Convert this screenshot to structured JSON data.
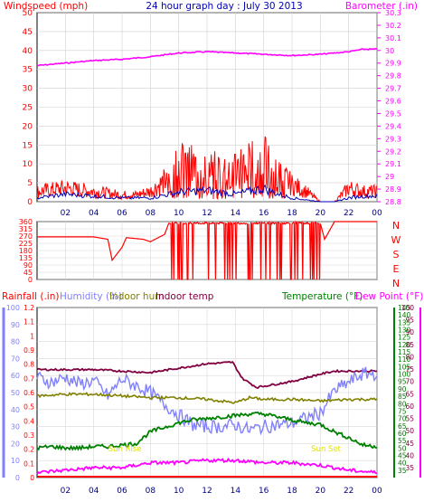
{
  "chart_data": [
    {
      "type": "line",
      "title": "24 hour graph day : July 30 2013",
      "left_axis_label": "Windspeed (mph)",
      "right_axis_label": "Barometer (.in)",
      "x_ticks": [
        "02",
        "04",
        "06",
        "08",
        "10",
        "12",
        "14",
        "16",
        "18",
        "20",
        "22",
        "00"
      ],
      "x_range_hours": [
        0,
        24
      ],
      "left_ylim": [
        0,
        50
      ],
      "left_ticks": [
        0,
        5,
        10,
        15,
        20,
        25,
        30,
        35,
        40,
        45,
        50
      ],
      "right_ylim": [
        28.8,
        30.3
      ],
      "right_ticks": [
        "28.8",
        "28.9",
        "29",
        "29.1",
        "29.2",
        "29.3",
        "29.4",
        "29.5",
        "29.6",
        "29.7",
        "29.8",
        "29.9",
        "30",
        "30.1",
        "30.2",
        "30.3"
      ],
      "series": [
        {
          "color": "#ff00ff",
          "axis": "right",
          "x": [
            0,
            2,
            4,
            6,
            8,
            10,
            12,
            14,
            16,
            18,
            20,
            22,
            23,
            24
          ],
          "y": [
            29.88,
            29.9,
            29.92,
            29.93,
            29.95,
            29.98,
            29.99,
            29.98,
            29.97,
            29.96,
            29.97,
            29.99,
            30.01,
            30.01
          ]
        },
        {
          "color": "#ff0000",
          "axis": "left",
          "x": [
            0,
            2,
            4,
            6,
            7,
            8,
            9,
            10,
            11,
            12,
            13,
            14,
            15,
            16,
            17,
            18,
            19,
            20,
            21,
            22,
            23,
            24
          ],
          "y": [
            3,
            4,
            3,
            2,
            2,
            3,
            6,
            11,
            10,
            9,
            9,
            10,
            11,
            12,
            8,
            5,
            3,
            0,
            0,
            4,
            3,
            3
          ]
        },
        {
          "color": "#0000b4",
          "axis": "left",
          "x": [
            0,
            2,
            4,
            6,
            8,
            10,
            12,
            14,
            16,
            17,
            18,
            19,
            20,
            21,
            22,
            23,
            24
          ],
          "y": [
            1,
            2,
            1.5,
            1,
            1,
            2.5,
            3,
            2,
            3.5,
            2,
            1,
            0.5,
            0,
            0,
            1,
            1.5,
            1.5
          ]
        }
      ]
    },
    {
      "type": "line",
      "title": "",
      "left_ylim": [
        0,
        360
      ],
      "left_ticks": [
        0,
        45,
        90,
        135,
        180,
        225,
        270,
        315,
        360
      ],
      "right_labels": [
        "N",
        "W",
        "S",
        "E",
        "N"
      ],
      "series": [
        {
          "color": "#ff0000",
          "x": [
            0,
            4,
            5,
            5.3,
            6,
            6.3,
            7.5,
            8,
            9,
            9.3,
            20,
            20.3,
            21,
            24
          ],
          "y": [
            265,
            265,
            250,
            120,
            200,
            260,
            250,
            235,
            280,
            350,
            350,
            250,
            360,
            360
          ]
        }
      ]
    },
    {
      "type": "line",
      "legend": [
        {
          "label": "Rainfall (.in)",
          "color": "#ff0000"
        },
        {
          "label": "Humidity (%)",
          "color": "#8080ff"
        },
        {
          "label": "Indoor hum",
          "color": "#808000"
        },
        {
          "label": "Indoor temp",
          "color": "#800040"
        },
        {
          "label": "Temperature (°F)",
          "color": "#008000"
        },
        {
          "label": "Dew Point (°F)",
          "color": "#ff00ff"
        }
      ],
      "axis_rainfall": {
        "range": [
          0,
          1.2
        ],
        "ticks": [
          "0",
          "0.1",
          "0.2",
          "0.3",
          "0.4",
          "0.5",
          "0.6",
          "0.7",
          "0.8",
          "0.9",
          "1",
          "1.1",
          "1.2"
        ]
      },
      "axis_humidity": {
        "range": [
          0,
          100
        ],
        "ticks": [
          0,
          10,
          20,
          30,
          40,
          50,
          60,
          70,
          80,
          90,
          100
        ]
      },
      "axis_temperature": {
        "range": [
          30,
          145
        ],
        "ticks": [
          35,
          40,
          45,
          50,
          55,
          60,
          65,
          70,
          75,
          80,
          85,
          90,
          95,
          100,
          105,
          110,
          115,
          120,
          125,
          130,
          135,
          140,
          145
        ]
      },
      "axis_dewpoint": {
        "range": [
          31,
          100
        ],
        "ticks": [
          35,
          40,
          45,
          50,
          55,
          60,
          65,
          70,
          75,
          80,
          85,
          90,
          95,
          100
        ]
      },
      "annotations": [
        {
          "text": "Sun Rise",
          "x": 6.2
        },
        {
          "text": "Sun Set",
          "x": 20.4
        }
      ],
      "series": [
        {
          "name": "Indoor temp",
          "axis": "temperature",
          "color": "#800040",
          "x": [
            0,
            4,
            8,
            10,
            12,
            13.8,
            14.5,
            15.5,
            18,
            20,
            21,
            24
          ],
          "y": [
            103,
            103,
            101,
            104,
            107,
            108,
            97,
            91,
            95,
            100,
            102,
            102
          ]
        },
        {
          "name": "Humidity (%)",
          "axis": "humidity",
          "color": "#8080ff",
          "x": [
            0,
            1,
            2,
            3,
            4,
            5,
            6,
            7,
            8,
            9,
            10,
            11,
            12,
            13,
            14,
            15,
            16,
            17,
            18,
            19,
            20,
            21,
            22,
            23,
            24
          ],
          "y": [
            59,
            56,
            59,
            55,
            57,
            48,
            58,
            54,
            50,
            43,
            37,
            31,
            30,
            30,
            31,
            28,
            30,
            31,
            32,
            35,
            38,
            51,
            56,
            61,
            61
          ]
        },
        {
          "name": "Indoor hum",
          "axis": "humidity",
          "color": "#808000",
          "x": [
            0,
            2,
            4,
            6,
            8,
            10,
            12,
            14,
            15,
            16,
            18,
            20,
            22,
            24
          ],
          "y": [
            48,
            49,
            49,
            48,
            47,
            47,
            46,
            44,
            47,
            46,
            46,
            45,
            46,
            46
          ]
        },
        {
          "name": "Temperature (°F)",
          "axis": "temperature",
          "color": "#008000",
          "x": [
            0,
            1,
            2,
            3,
            4,
            5,
            6,
            7,
            7.5,
            8,
            9,
            10,
            11,
            12,
            13,
            14,
            15,
            16,
            17,
            18,
            19,
            20,
            21,
            22,
            23,
            24
          ],
          "y": [
            50,
            51,
            50,
            50,
            51,
            51,
            52,
            53,
            57,
            61,
            64,
            67,
            69,
            70,
            71,
            72,
            73,
            73,
            71,
            69,
            67,
            66,
            61,
            57,
            52,
            51
          ]
        },
        {
          "name": "Dew Point (°F)",
          "axis": "dewpoint",
          "color": "#ff00ff",
          "x": [
            0,
            2,
            4,
            6,
            8,
            10,
            12,
            14,
            16,
            18,
            20,
            22,
            24
          ],
          "y": [
            33,
            34,
            35,
            35,
            37,
            37,
            38,
            38,
            37,
            37,
            36,
            34,
            33
          ]
        },
        {
          "name": "Rainfall (.in)",
          "axis": "rainfall",
          "color": "#ff0000",
          "x": [
            0,
            24
          ],
          "y": [
            0,
            0
          ]
        }
      ]
    }
  ]
}
